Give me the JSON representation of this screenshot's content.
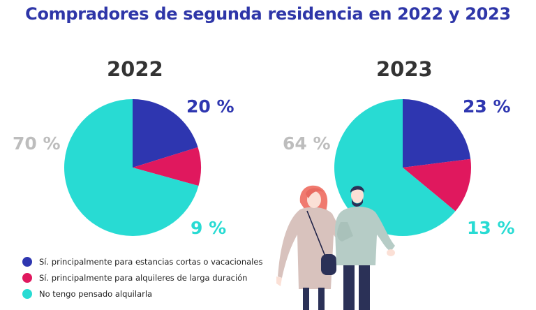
{
  "title": "Compradores de segunda residencia en 2022 y 2023",
  "colors": {
    "short_stay": "#2e36b0",
    "long_rental": "#e0185e",
    "no_rental": "#28dbd3",
    "muted_label": "#bdbdbd"
  },
  "illustration": "couple-walking-illustration",
  "legend": [
    "Sí. principalmente para estancias cortas o vacacionales",
    "Sí. principalmente para alquileres de larga duración",
    "No tengo pensado alquilarla"
  ],
  "chart_data": [
    {
      "type": "pie",
      "title": "2022",
      "labels": [
        "Sí. principalmente para estancias cortas o vacacionales",
        "Sí. principalmente para alquileres de larga duración",
        "No tengo pensado alquilarla"
      ],
      "values": [
        20,
        9,
        70
      ],
      "value_labels": [
        "20 %",
        "9 %",
        "70 %"
      ]
    },
    {
      "type": "pie",
      "title": "2023",
      "labels": [
        "Sí. principalmente para estancias cortas o vacacionales",
        "Sí. principalmente para alquileres de larga duración",
        "No tengo pensado alquilarla"
      ],
      "values": [
        23,
        13,
        64
      ],
      "value_labels": [
        "23 %",
        "13 %",
        "64 %"
      ]
    }
  ]
}
